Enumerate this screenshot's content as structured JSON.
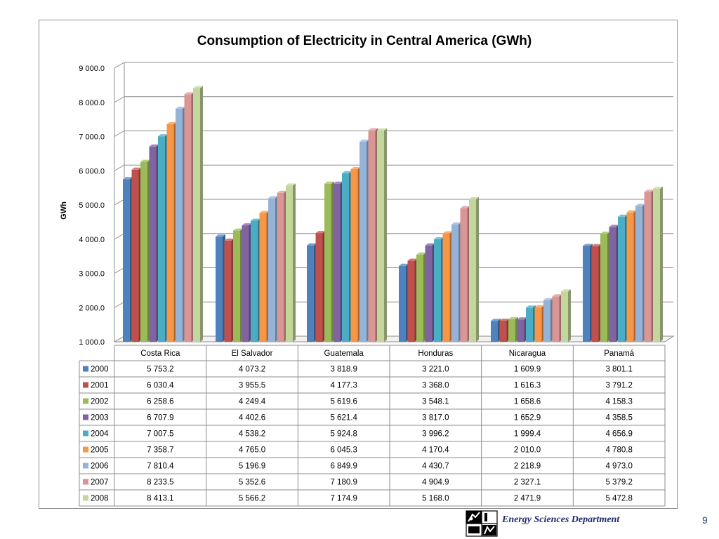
{
  "colors": {
    "series": [
      "#4f81bd",
      "#c0504d",
      "#9bbb59",
      "#8064a2",
      "#4bacc6",
      "#f79646",
      "#95b3d7",
      "#d99694",
      "#c3d69b"
    ],
    "grid": "#8c8c8c",
    "text": "#000000",
    "dept_text": "#1f2d6e"
  },
  "chart_data": {
    "type": "bar",
    "title": "Consumption of Electricity in Central America (GWh)",
    "xlabel": "",
    "ylabel": "GWh",
    "ylim": [
      1000,
      9000
    ],
    "yticks": [
      1000,
      2000,
      3000,
      4000,
      5000,
      6000,
      7000,
      8000,
      9000
    ],
    "ytick_labels": [
      "1 000.0",
      "2 000.0",
      "3 000.0",
      "4 000.0",
      "5 000.0",
      "6 000.0",
      "7 000.0",
      "8 000.0",
      "9 000.0"
    ],
    "grid": true,
    "legend": "data-table",
    "categories": [
      "Costa Rica",
      "El Salvador",
      "Guatemala",
      "Honduras",
      "Nicaragua",
      "Panamá"
    ],
    "series": [
      {
        "name": "2000",
        "values": [
          5753.2,
          4073.2,
          3818.9,
          3221.0,
          1609.9,
          3801.1
        ],
        "labels": [
          "5 753.2",
          "4 073.2",
          "3 818.9",
          "3 221.0",
          "1 609.9",
          "3 801.1"
        ]
      },
      {
        "name": "2001",
        "values": [
          6030.4,
          3955.5,
          4177.3,
          3368.0,
          1616.3,
          3791.2
        ],
        "labels": [
          "6 030.4",
          "3 955.5",
          "4 177.3",
          "3 368.0",
          "1 616.3",
          "3 791.2"
        ]
      },
      {
        "name": "2002",
        "values": [
          6258.6,
          4249.4,
          5619.6,
          3548.1,
          1658.6,
          4158.3
        ],
        "labels": [
          "6 258.6",
          "4 249.4",
          "5 619.6",
          "3 548.1",
          "1 658.6",
          "4 158.3"
        ]
      },
      {
        "name": "2003",
        "values": [
          6707.9,
          4402.6,
          5621.4,
          3817.0,
          1652.9,
          4358.5
        ],
        "labels": [
          "6 707.9",
          "4 402.6",
          "5 621.4",
          "3 817.0",
          "1 652.9",
          "4 358.5"
        ]
      },
      {
        "name": "2004",
        "values": [
          7007.5,
          4538.2,
          5924.8,
          3996.2,
          1999.4,
          4656.9
        ],
        "labels": [
          "7 007.5",
          "4 538.2",
          "5 924.8",
          "3 996.2",
          "1 999.4",
          "4 656.9"
        ]
      },
      {
        "name": "2005",
        "values": [
          7358.7,
          4765.0,
          6045.3,
          4170.4,
          2010.0,
          4780.8
        ],
        "labels": [
          "7 358.7",
          "4 765.0",
          "6 045.3",
          "4 170.4",
          "2 010.0",
          "4 780.8"
        ]
      },
      {
        "name": "2006",
        "values": [
          7810.4,
          5196.9,
          6849.9,
          4430.7,
          2218.9,
          4973.0
        ],
        "labels": [
          "7 810.4",
          "5 196.9",
          "6 849.9",
          "4 430.7",
          "2 218.9",
          "4 973.0"
        ]
      },
      {
        "name": "2007",
        "values": [
          8233.5,
          5352.6,
          7180.9,
          4904.9,
          2327.1,
          5379.2
        ],
        "labels": [
          "8 233.5",
          "5 352.6",
          "7 180.9",
          "4 904.9",
          "2 327.1",
          "5 379.2"
        ]
      },
      {
        "name": "2008",
        "values": [
          8413.1,
          5566.2,
          7174.9,
          5168.0,
          2471.9,
          5472.8
        ],
        "labels": [
          "8 413.1",
          "5 566.2",
          "7 174.9",
          "5 168.0",
          "2 471.9",
          "5 472.8"
        ]
      }
    ]
  },
  "footer": {
    "department": "Energy Sciences Department",
    "page_number": "9"
  }
}
